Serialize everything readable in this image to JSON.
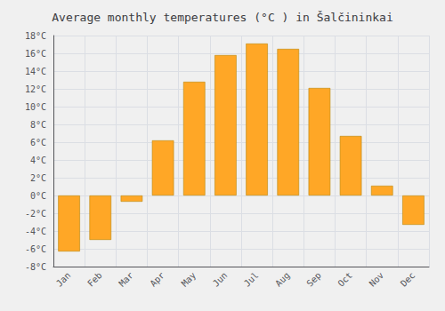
{
  "chart_data": {
    "type": "bar",
    "title": "Average monthly temperatures (°C ) in Šalčininkai",
    "categories": [
      "Jan",
      "Feb",
      "Mar",
      "Apr",
      "May",
      "Jun",
      "Jul",
      "Aug",
      "Sep",
      "Oct",
      "Nov",
      "Dec"
    ],
    "values": [
      -6.3,
      -5.0,
      -0.7,
      6.2,
      12.8,
      15.8,
      17.1,
      16.5,
      12.1,
      6.7,
      1.1,
      -3.3
    ],
    "color": "#FFA726",
    "ylim": [
      -8,
      18
    ],
    "yticks": [
      {
        "value": -8,
        "label": "-8°C"
      },
      {
        "value": -6,
        "label": "-6°C"
      },
      {
        "value": -4,
        "label": "-4°C"
      },
      {
        "value": -2,
        "label": "-2°C"
      },
      {
        "value": 0,
        "label": "0°C"
      },
      {
        "value": 2,
        "label": "2°C"
      },
      {
        "value": 4,
        "label": "4°C"
      },
      {
        "value": 6,
        "label": "6°C"
      },
      {
        "value": 8,
        "label": "8°C"
      },
      {
        "value": 10,
        "label": "10°C"
      },
      {
        "value": 12,
        "label": "12°C"
      },
      {
        "value": 14,
        "label": "14°C"
      },
      {
        "value": 16,
        "label": "16°C"
      },
      {
        "value": 18,
        "label": "18°C"
      }
    ],
    "grid": true
  }
}
